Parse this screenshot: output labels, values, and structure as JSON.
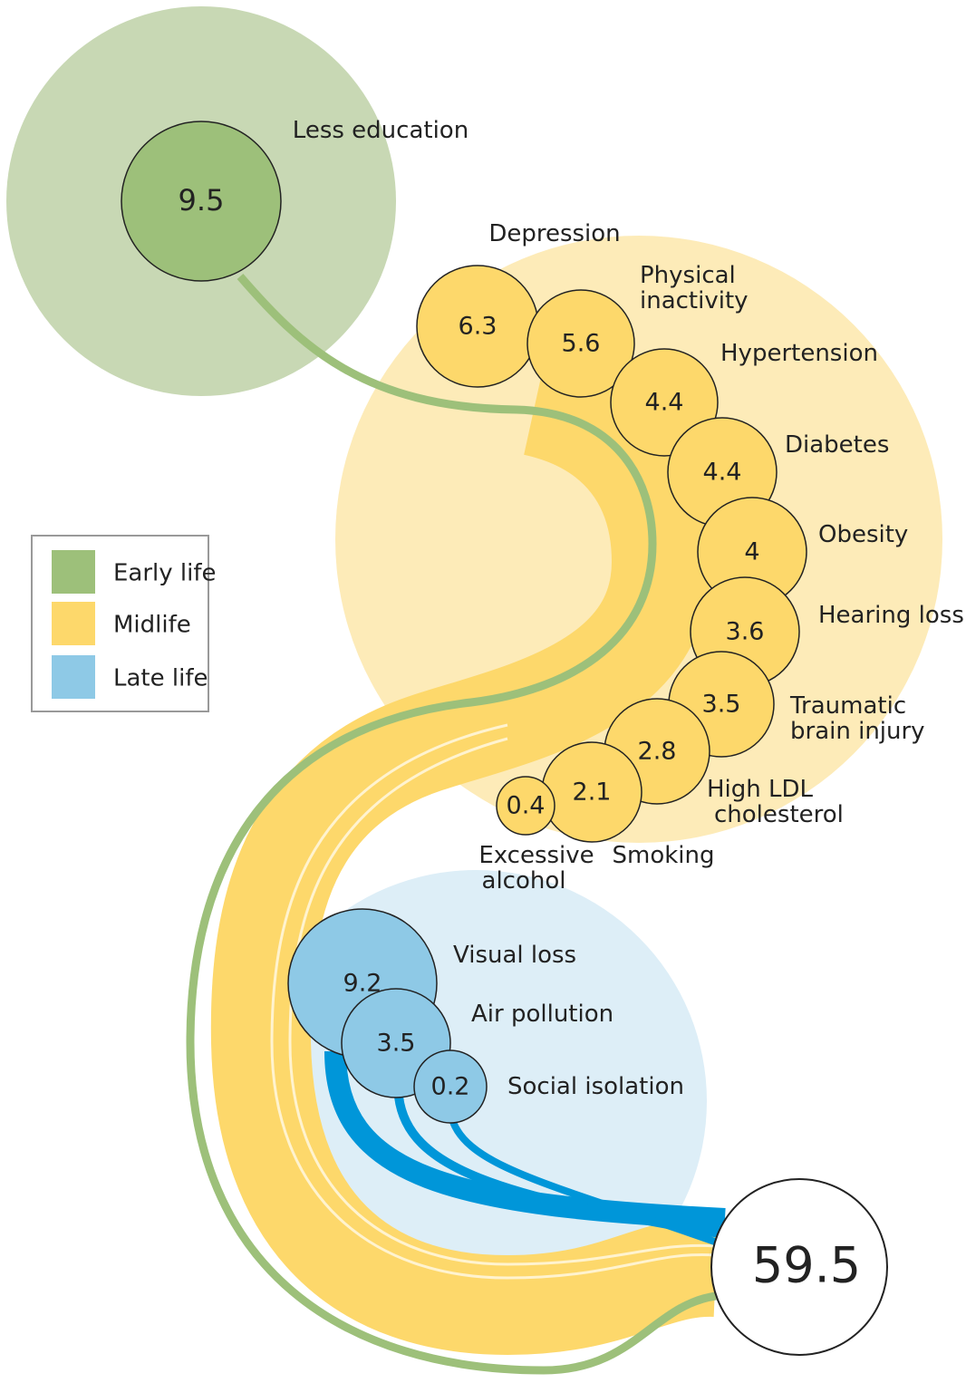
{
  "groups": [
    {
      "label": "Early life",
      "color": "#9dc07a",
      "background": "#c8d8b4",
      "nodes": [
        {
          "label": [
            "Less education"
          ],
          "value": 9.5
        }
      ]
    },
    {
      "label": "Midlife",
      "color": "#fdd86b",
      "background": "#fdebb8",
      "nodes": [
        {
          "label": [
            "Depression"
          ],
          "value": 6.3
        },
        {
          "label": [
            "Physical",
            "inactivity"
          ],
          "value": 5.6
        },
        {
          "label": [
            "Hypertension"
          ],
          "value": 4.4
        },
        {
          "label": [
            "Diabetes"
          ],
          "value": 4.4
        },
        {
          "label": [
            "Obesity"
          ],
          "value": 4
        },
        {
          "label": [
            "Hearing loss"
          ],
          "value": 3.6
        },
        {
          "label": [
            "Traumatic",
            "brain injury"
          ],
          "value": 3.5
        },
        {
          "label": [
            "High LDL",
            "cholesterol"
          ],
          "value": 2.8
        },
        {
          "label": [
            "Smoking"
          ],
          "value": 2.1
        },
        {
          "label": [
            "Excessive",
            "alcohol"
          ],
          "value": 0.4
        }
      ]
    },
    {
      "label": "Late life",
      "color": "#8ec9e6",
      "background": "#ddeef7",
      "nodes": [
        {
          "label": [
            "Visual loss"
          ],
          "value": 9.2
        },
        {
          "label": [
            "Air pollution"
          ],
          "value": 3.5
        },
        {
          "label": [
            "Social isolation"
          ],
          "value": 0.2
        }
      ]
    }
  ],
  "total": 59.5
}
